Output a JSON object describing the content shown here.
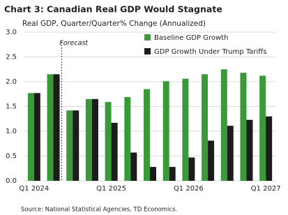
{
  "chart_data": {
    "type": "bar",
    "title": "Chart 3: Canadian Real GDP Would Stagnate",
    "subtitle": "Real GDP, Quarter/Quarter% Change (Annualized)",
    "source": "Source: National Statistical Agencies, TD Economics.",
    "annotation": "Forecast",
    "categories": [
      "Q1 2024",
      null,
      null,
      null,
      "Q1 2025",
      null,
      null,
      null,
      "Q1 2026",
      null,
      null,
      null,
      "Q1 2027"
    ],
    "series": [
      {
        "name": "Baseline GDP Growth",
        "color": "#3a9a3a",
        "values": [
          1.77,
          2.15,
          1.42,
          1.65,
          1.59,
          1.69,
          1.85,
          2.01,
          2.06,
          2.15,
          2.25,
          2.18,
          2.12
        ]
      },
      {
        "name": "GDP Growth Under Trump Tariffs",
        "color": "#1c1c1c",
        "values": [
          1.77,
          2.15,
          1.42,
          1.65,
          1.17,
          0.57,
          0.28,
          0.28,
          0.47,
          0.81,
          1.11,
          1.23,
          1.3
        ]
      }
    ],
    "ylim": [
      0,
      3
    ],
    "yticks": [
      {
        "value": 0,
        "label": "0.0"
      },
      0.5,
      {
        "value": 1,
        "label": "1.0"
      },
      1.5,
      {
        "value": 2,
        "label": "2.0"
      },
      2.5,
      {
        "value": 3,
        "label": "3.0"
      }
    ],
    "grid": true
  }
}
